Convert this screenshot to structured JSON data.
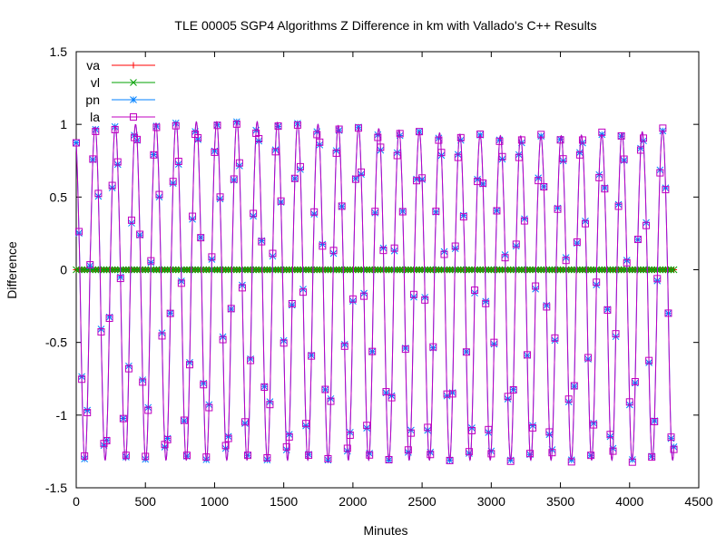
{
  "chart_data": {
    "type": "line",
    "title": "TLE 00005 SGP4 Algorithms Z Difference in km with Vallado's C++ Results",
    "xlabel": "Minutes",
    "ylabel": "Difference",
    "xlim": [
      0,
      4500
    ],
    "ylim": [
      -1.5,
      1.5
    ],
    "x_ticks": [
      "0",
      "500",
      "1000",
      "1500",
      "2000",
      "2500",
      "3000",
      "3500",
      "4000",
      "4500"
    ],
    "y_ticks": [
      "1.5",
      "1",
      "0.5",
      "0",
      "-0.5",
      "-1",
      "-1.5"
    ],
    "grid": false,
    "legend_position": "top-left",
    "x_step_minutes": 20,
    "x_max_minutes": 4320,
    "oscillation": {
      "period_minutes": 146.5,
      "start_value": 0.9,
      "peak_value_range": [
        0.92,
        1.02
      ],
      "trough_value": -1.31
    },
    "series": [
      {
        "name": "va",
        "color": "#ff0000",
        "marker": "plus",
        "values_constant": 0
      },
      {
        "name": "vl",
        "color": "#00a000",
        "marker": "cross",
        "values_constant": 0
      },
      {
        "name": "pn",
        "color": "#0080ff",
        "marker": "star",
        "values": "oscillation"
      },
      {
        "name": "la",
        "color": "#c000c0",
        "marker": "square",
        "values": "oscillation"
      }
    ]
  }
}
